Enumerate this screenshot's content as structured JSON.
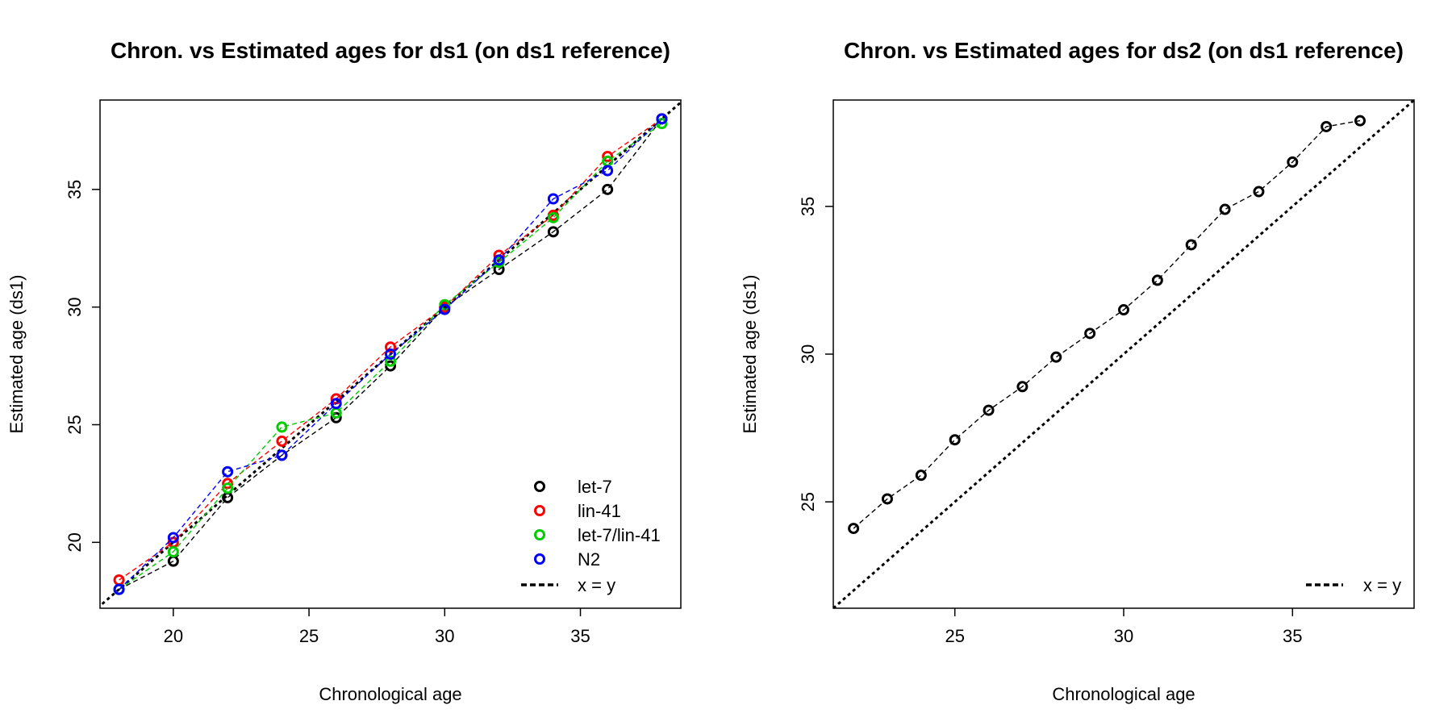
{
  "chart_data": [
    {
      "type": "line",
      "title": "Chron. vs Estimated ages for ds1 (on ds1 reference)",
      "xlabel": "Chronological age",
      "ylabel": "Estimated age (ds1)",
      "xlim": [
        17.3,
        38.7
      ],
      "ylim": [
        17.2,
        38.8
      ],
      "xticks": [
        20,
        25,
        30,
        35
      ],
      "yticks": [
        20,
        25,
        30,
        35
      ],
      "grid": false,
      "legend": "bottom-right",
      "identity_line": {
        "label": "x = y",
        "color": "#000000",
        "style": "dotted"
      },
      "series": [
        {
          "name": "let-7",
          "color": "#000000",
          "x": [
            18,
            20,
            22,
            24,
            26,
            28,
            30,
            32,
            34,
            36,
            38
          ],
          "y": [
            18.0,
            19.2,
            21.9,
            23.7,
            25.3,
            27.5,
            30.0,
            31.6,
            33.2,
            35.0,
            38.0
          ]
        },
        {
          "name": "lin-41",
          "color": "#ff0000",
          "x": [
            18,
            20,
            22,
            24,
            26,
            28,
            30,
            32,
            34,
            36,
            38
          ],
          "y": [
            18.4,
            20.0,
            22.5,
            24.3,
            26.1,
            28.3,
            30.0,
            32.2,
            33.9,
            36.4,
            38.0
          ]
        },
        {
          "name": "let-7/lin-41",
          "color": "#00cd00",
          "x": [
            18,
            20,
            22,
            24,
            26,
            28,
            30,
            32,
            34,
            36,
            38
          ],
          "y": [
            18.0,
            19.6,
            22.3,
            24.9,
            25.5,
            27.7,
            30.1,
            31.9,
            33.8,
            36.2,
            37.8
          ]
        },
        {
          "name": "N2",
          "color": "#0000ff",
          "x": [
            18,
            20,
            22,
            24,
            26,
            28,
            30,
            32,
            34,
            36,
            38
          ],
          "y": [
            18.0,
            20.2,
            23.0,
            23.7,
            25.9,
            28.0,
            29.9,
            32.0,
            34.6,
            35.8,
            38.0
          ]
        }
      ]
    },
    {
      "type": "line",
      "title": "Chron. vs Estimated ages for ds2 (on ds1 reference)",
      "xlabel": "Chronological age",
      "ylabel": "Estimated age (ds1)",
      "xlim": [
        21.4,
        38.6
      ],
      "ylim": [
        21.4,
        38.6
      ],
      "xticks": [
        25,
        30,
        35
      ],
      "yticks": [
        25,
        30,
        35
      ],
      "grid": false,
      "legend": "bottom-right",
      "identity_line": {
        "label": "x = y",
        "color": "#000000",
        "style": "dotted"
      },
      "series": [
        {
          "name": "",
          "color": "#000000",
          "x": [
            22,
            23,
            24,
            25,
            26,
            27,
            28,
            29,
            30,
            31,
            32,
            33,
            34,
            35,
            36,
            37
          ],
          "y": [
            24.1,
            25.1,
            25.9,
            27.1,
            28.1,
            28.9,
            29.9,
            30.7,
            31.5,
            32.5,
            33.7,
            34.9,
            35.5,
            36.5,
            37.7,
            37.9
          ]
        }
      ]
    }
  ]
}
